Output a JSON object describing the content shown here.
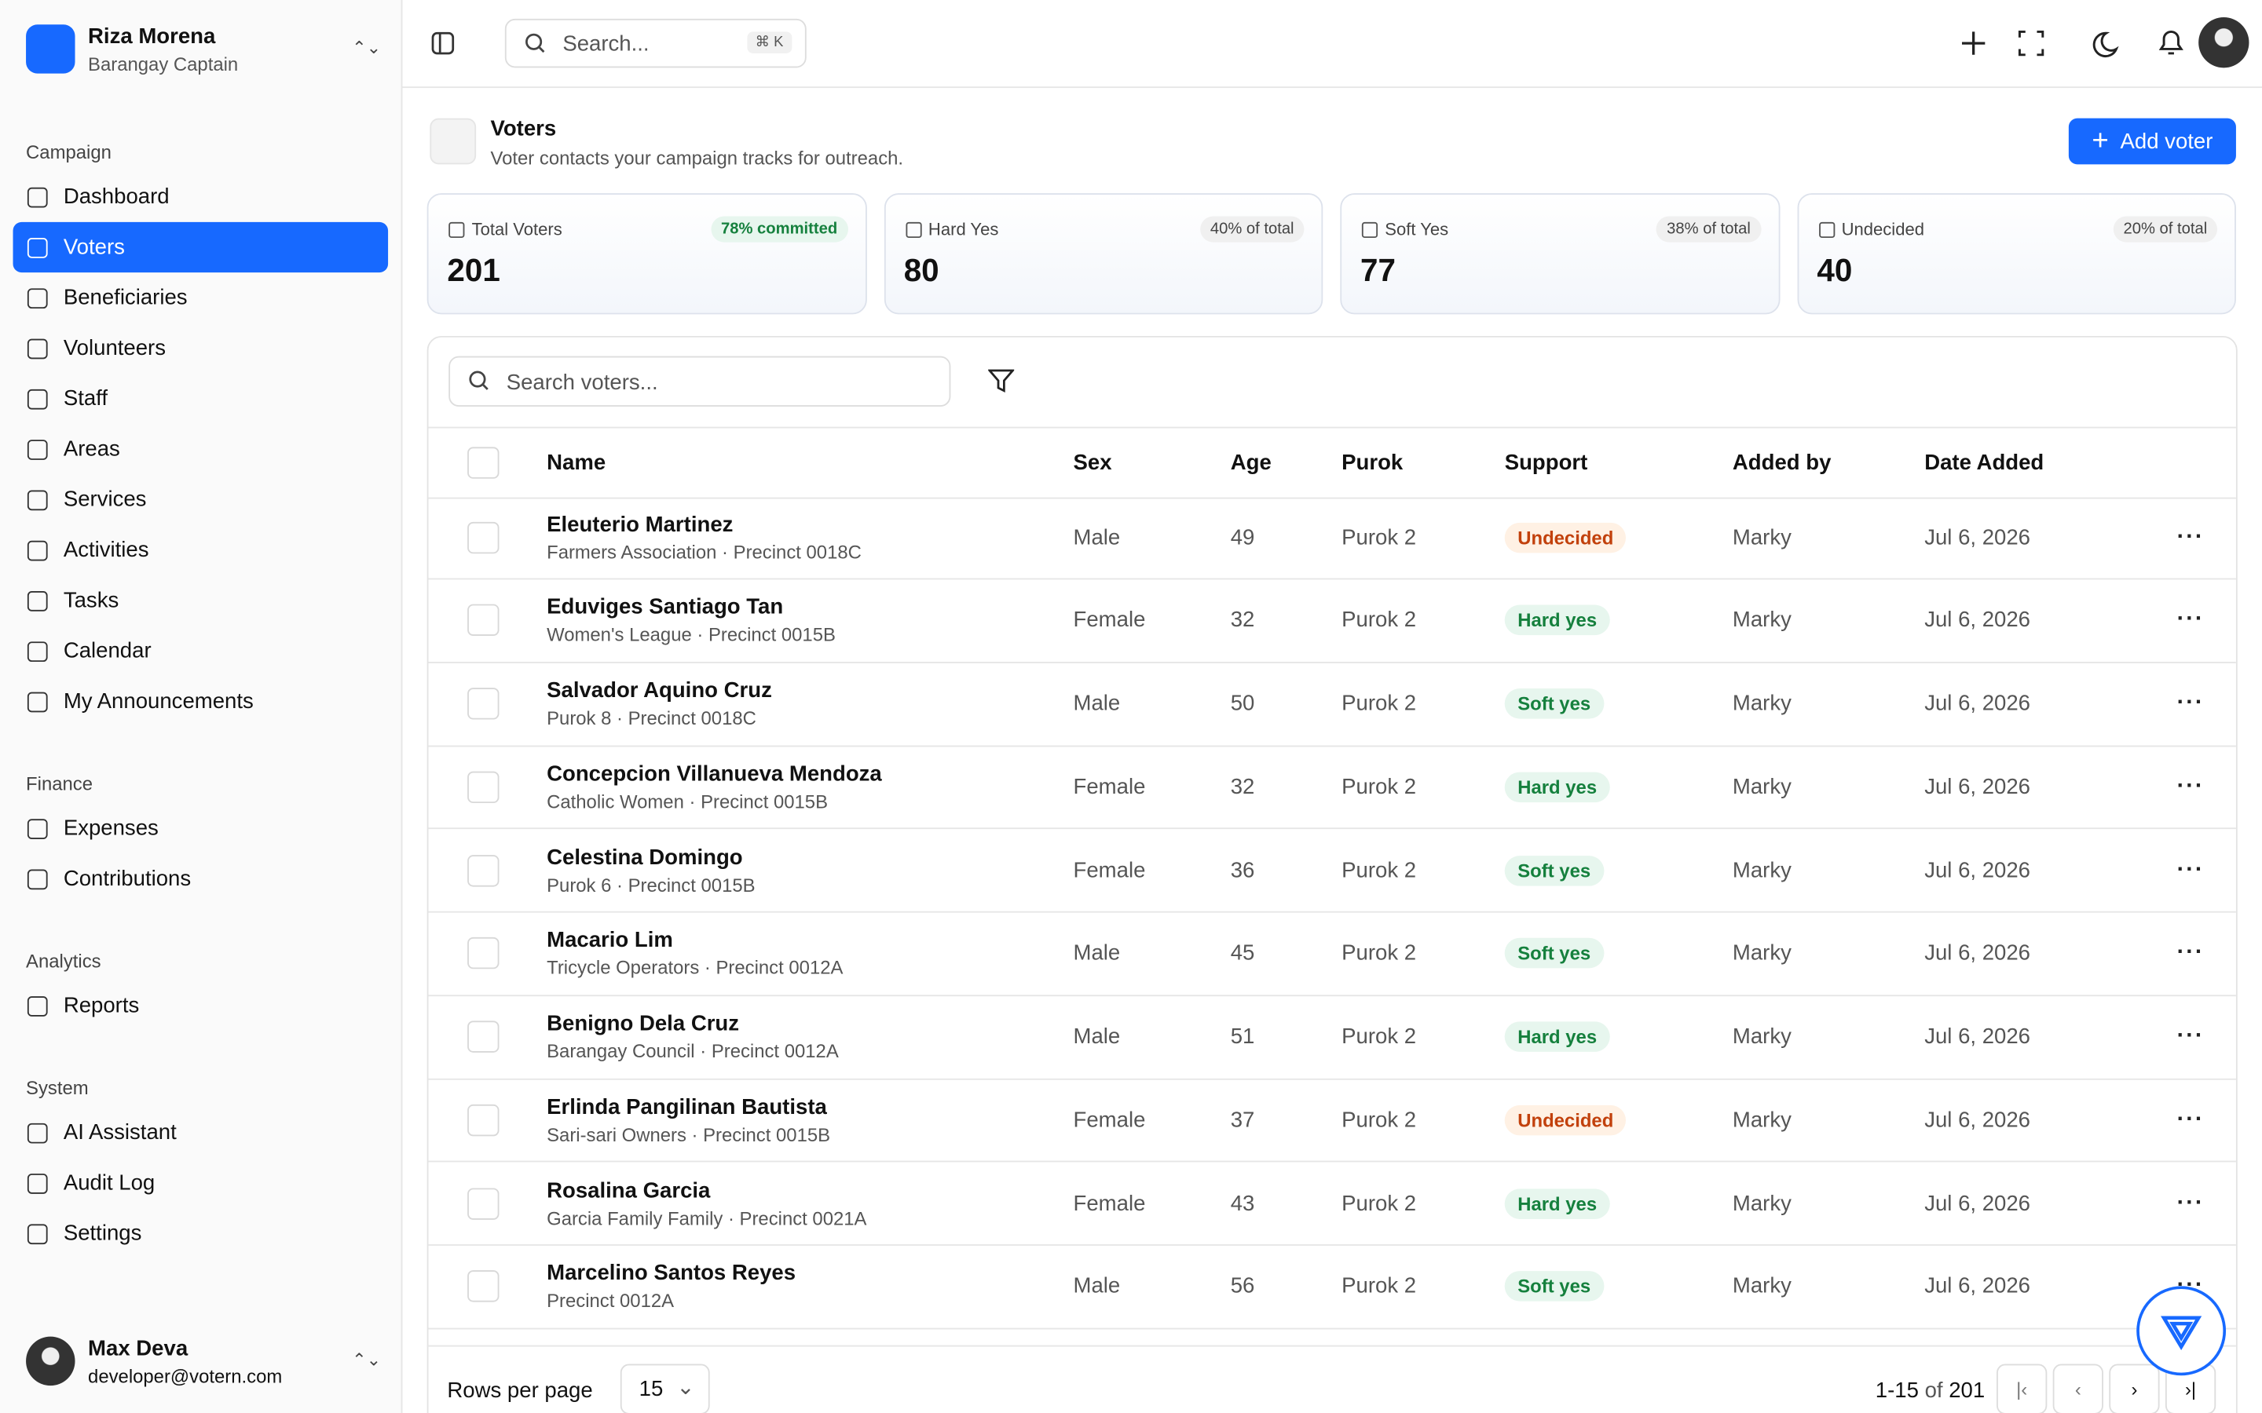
{
  "user": {
    "name": "Riza Morena",
    "role": "Barangay Captain"
  },
  "topbar": {
    "search": "Search...",
    "shortcut": "⌘ K"
  },
  "nav": [
    {
      "section": "Campaign",
      "items": [
        "Dashboard",
        "Voters",
        "Beneficiaries",
        "Volunteers",
        "Staff",
        "Areas",
        "Services",
        "Activities",
        "Tasks",
        "Calendar",
        "My Announcements"
      ]
    },
    {
      "section": "Finance",
      "items": [
        "Expenses",
        "Contributions"
      ]
    },
    {
      "section": "Analytics",
      "items": [
        "Reports"
      ]
    },
    {
      "section": "System",
      "items": [
        "AI Assistant",
        "Audit Log",
        "Settings"
      ]
    }
  ],
  "active_nav": "Voters",
  "account": {
    "name": "Max Deva",
    "email": "developer@votern.com"
  },
  "page": {
    "title": "Voters",
    "subtitle": "Voter contacts your campaign tracks for outreach.",
    "action": "Add voter"
  },
  "stats": [
    {
      "label": "Total Voters",
      "value": "201",
      "badge": "78% committed"
    },
    {
      "label": "Hard Yes",
      "value": "80",
      "badge": "40% of total"
    },
    {
      "label": "Soft Yes",
      "value": "77",
      "badge": "38% of total"
    },
    {
      "label": "Undecided",
      "value": "40",
      "badge": "20% of total"
    }
  ],
  "table": {
    "search": "Search voters...",
    "columns": [
      "Name",
      "Sex",
      "Age",
      "Purok",
      "Support",
      "Added by",
      "Date Added"
    ],
    "badge_colors": {
      "Undecided": {
        "fg": "#c2410c",
        "bg": "#fff1e4"
      },
      "Hard yes": {
        "fg": "#15803d",
        "bg": "#e7f6ee"
      },
      "Soft yes": {
        "fg": "#15803d",
        "bg": "#e7f6ee"
      }
    },
    "rows": [
      [
        "Eleuterio Martinez",
        "Farmers Association · Precinct 0018C",
        "Male",
        "49",
        "Purok 2",
        "Undecided",
        "Marky",
        "Jul 6, 2026"
      ],
      [
        "Eduviges Santiago Tan",
        "Women's League · Precinct 0015B",
        "Female",
        "32",
        "Purok 2",
        "Hard yes",
        "Marky",
        "Jul 6, 2026"
      ],
      [
        "Salvador Aquino Cruz",
        "Purok 8 · Precinct 0018C",
        "Male",
        "50",
        "Purok 2",
        "Soft yes",
        "Marky",
        "Jul 6, 2026"
      ],
      [
        "Concepcion Villanueva Mendoza",
        "Catholic Women · Precinct 0015B",
        "Female",
        "32",
        "Purok 2",
        "Hard yes",
        "Marky",
        "Jul 6, 2026"
      ],
      [
        "Celestina Domingo",
        "Purok 6 · Precinct 0015B",
        "Female",
        "36",
        "Purok 2",
        "Soft yes",
        "Marky",
        "Jul 6, 2026"
      ],
      [
        "Macario Lim",
        "Tricycle Operators · Precinct 0012A",
        "Male",
        "45",
        "Purok 2",
        "Soft yes",
        "Marky",
        "Jul 6, 2026"
      ],
      [
        "Benigno Dela Cruz",
        "Barangay Council · Precinct 0012A",
        "Male",
        "51",
        "Purok 2",
        "Hard yes",
        "Marky",
        "Jul 6, 2026"
      ],
      [
        "Erlinda Pangilinan Bautista",
        "Sari-sari Owners · Precinct 0015B",
        "Female",
        "37",
        "Purok 2",
        "Undecided",
        "Marky",
        "Jul 6, 2026"
      ],
      [
        "Rosalina Garcia",
        "Garcia Family Family · Precinct 0021A",
        "Female",
        "43",
        "Purok 2",
        "Hard yes",
        "Marky",
        "Jul 6, 2026"
      ],
      [
        "Marcelino Santos Reyes",
        "Precinct 0012A",
        "Male",
        "56",
        "Purok 2",
        "Soft yes",
        "Marky",
        "Jul 6, 2026"
      ]
    ]
  },
  "pagination": {
    "rows_label": "Rows per page",
    "rows_value": "15",
    "range": "1-15",
    "of": "of",
    "total": "201"
  }
}
